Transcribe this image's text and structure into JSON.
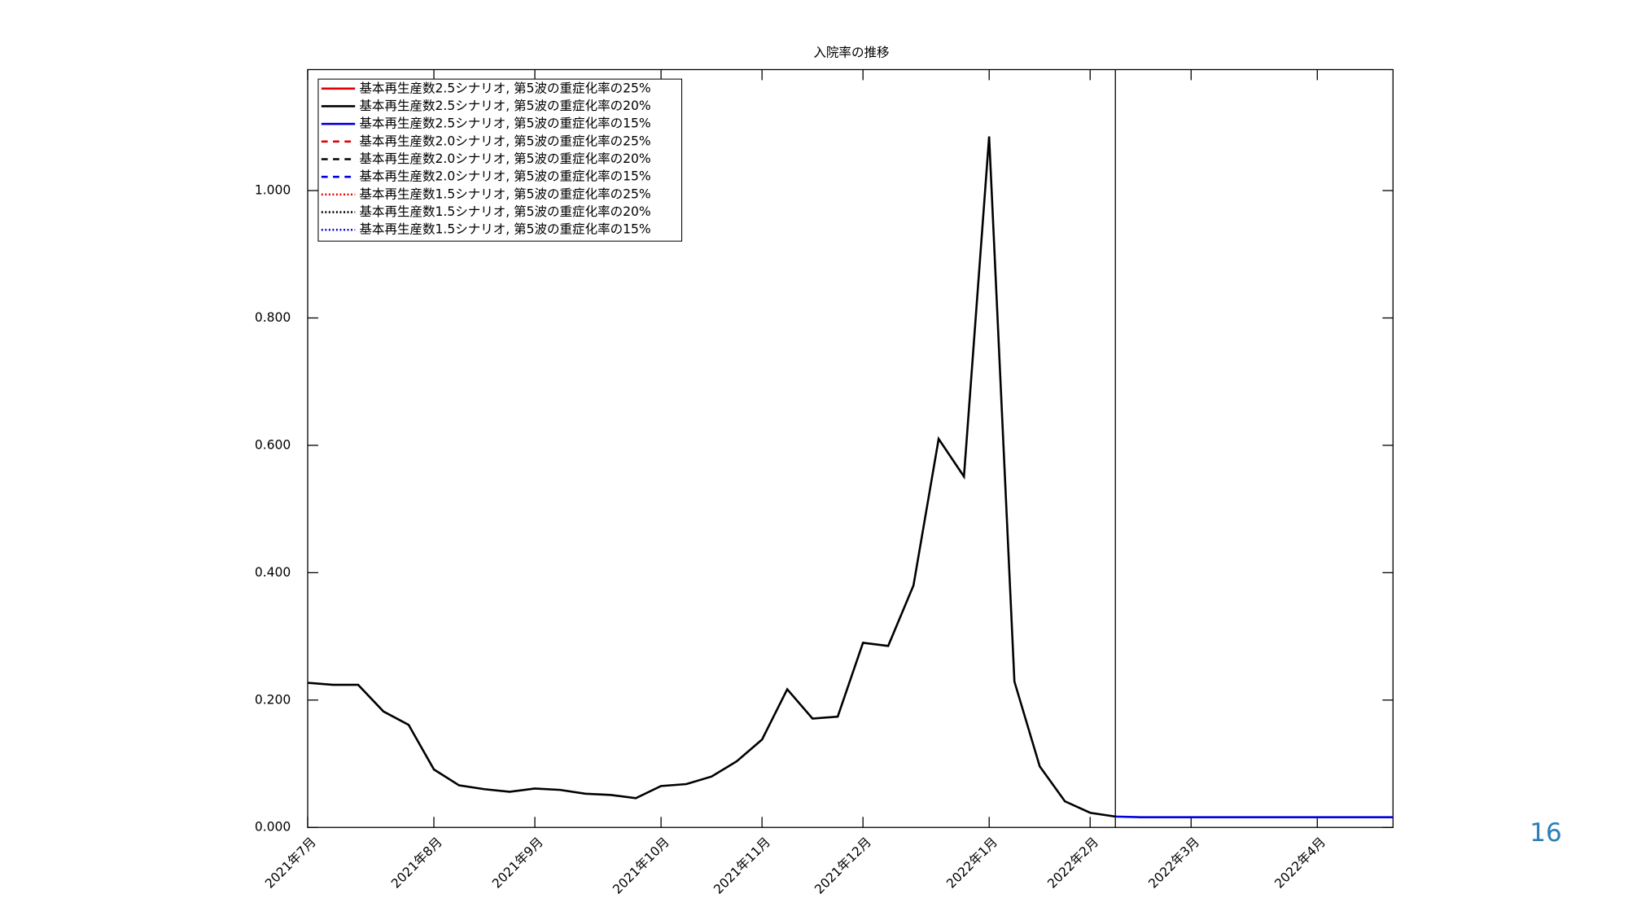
{
  "chart_data": {
    "type": "line",
    "title": "入院率の推移",
    "categories": [
      "2021年7月",
      null,
      null,
      null,
      null,
      "2021年8月",
      null,
      null,
      null,
      "2021年9月",
      null,
      null,
      null,
      null,
      "2021年10月",
      null,
      null,
      null,
      "2021年11月",
      null,
      null,
      null,
      "2021年12月",
      null,
      null,
      null,
      null,
      "2022年1月",
      null,
      null,
      null,
      "2022年2月",
      null,
      null,
      null,
      "2022年3月",
      null,
      null,
      null,
      null,
      "2022年4月",
      null,
      null,
      null
    ],
    "series": [
      {
        "name": "基本再生産数2.5シナリオ, 第5波の重症化率の25%",
        "color": "#e00000",
        "linestyle": "solid",
        "values": [
          null,
          null,
          null,
          null,
          null,
          null,
          null,
          null,
          null,
          null,
          null,
          null,
          null,
          null,
          null,
          null,
          null,
          null,
          null,
          null,
          null,
          null,
          null,
          null,
          null,
          null,
          null,
          null,
          null,
          null,
          null,
          null,
          null,
          null,
          null,
          null,
          null,
          null,
          null,
          null,
          null,
          null,
          null,
          null
        ]
      },
      {
        "name": "基本再生産数2.5シナリオ, 第5波の重症化率の20%",
        "color": "#000000",
        "linestyle": "solid",
        "values": [
          0.227,
          0.224,
          0.224,
          0.182,
          0.161,
          0.091,
          0.066,
          0.06,
          0.056,
          0.061,
          0.059,
          0.053,
          0.051,
          0.046,
          0.065,
          0.068,
          0.08,
          0.104,
          0.138,
          0.217,
          0.171,
          0.174,
          0.29,
          0.285,
          0.38,
          0.61,
          0.551,
          1.085,
          0.229,
          0.096,
          0.041,
          0.023,
          0.017,
          null,
          null,
          null,
          null,
          null,
          null,
          null,
          null,
          null,
          null,
          null
        ]
      },
      {
        "name": "基本再生産数2.5シナリオ, 第5波の重症化率の15%",
        "color": "#0000e0",
        "linestyle": "solid",
        "values": [
          null,
          null,
          null,
          null,
          null,
          null,
          null,
          null,
          null,
          null,
          null,
          null,
          null,
          null,
          null,
          null,
          null,
          null,
          null,
          null,
          null,
          null,
          null,
          null,
          null,
          null,
          null,
          null,
          null,
          null,
          null,
          null,
          0.017,
          0.016,
          0.016,
          0.016,
          0.016,
          0.016,
          0.016,
          0.016,
          0.016,
          0.016,
          0.016,
          0.016
        ]
      },
      {
        "name": "基本再生産数2.0シナリオ, 第5波の重症化率の25%",
        "color": "#e00000",
        "linestyle": "dashed",
        "values": [
          null,
          null,
          null,
          null,
          null,
          null,
          null,
          null,
          null,
          null,
          null,
          null,
          null,
          null,
          null,
          null,
          null,
          null,
          null,
          null,
          null,
          null,
          null,
          null,
          null,
          null,
          null,
          null,
          null,
          null,
          null,
          null,
          null,
          null,
          null,
          null,
          null,
          null,
          null,
          null,
          null,
          null,
          null,
          null
        ]
      },
      {
        "name": "基本再生産数2.0シナリオ, 第5波の重症化率の20%",
        "color": "#000000",
        "linestyle": "dashed",
        "values": [
          null,
          null,
          null,
          null,
          null,
          null,
          null,
          null,
          null,
          null,
          null,
          null,
          null,
          null,
          null,
          null,
          null,
          null,
          null,
          null,
          null,
          null,
          null,
          null,
          null,
          null,
          null,
          null,
          null,
          null,
          null,
          null,
          null,
          null,
          null,
          null,
          null,
          null,
          null,
          null,
          null,
          null,
          null,
          null
        ]
      },
      {
        "name": "基本再生産数2.0シナリオ, 第5波の重症化率の15%",
        "color": "#0000e0",
        "linestyle": "dashed",
        "values": [
          null,
          null,
          null,
          null,
          null,
          null,
          null,
          null,
          null,
          null,
          null,
          null,
          null,
          null,
          null,
          null,
          null,
          null,
          null,
          null,
          null,
          null,
          null,
          null,
          null,
          null,
          null,
          null,
          null,
          null,
          null,
          null,
          null,
          null,
          null,
          null,
          null,
          null,
          null,
          null,
          null,
          null,
          null,
          null
        ]
      },
      {
        "name": "基本再生産数1.5シナリオ, 第5波の重症化率の25%",
        "color": "#e00000",
        "linestyle": "dotted",
        "values": [
          null,
          null,
          null,
          null,
          null,
          null,
          null,
          null,
          null,
          null,
          null,
          null,
          null,
          null,
          null,
          null,
          null,
          null,
          null,
          null,
          null,
          null,
          null,
          null,
          null,
          null,
          null,
          null,
          null,
          null,
          null,
          null,
          null,
          null,
          null,
          null,
          null,
          null,
          null,
          null,
          null,
          null,
          null,
          null
        ]
      },
      {
        "name": "基本再生産数1.5シナリオ, 第5波の重症化率の20%",
        "color": "#000000",
        "linestyle": "dotted",
        "values": [
          null,
          null,
          null,
          null,
          null,
          null,
          null,
          null,
          null,
          null,
          null,
          null,
          null,
          null,
          null,
          null,
          null,
          null,
          null,
          null,
          null,
          null,
          null,
          null,
          null,
          null,
          null,
          null,
          null,
          null,
          null,
          null,
          null,
          null,
          null,
          null,
          null,
          null,
          null,
          null,
          null,
          null,
          null,
          null
        ]
      },
      {
        "name": "基本再生産数1.5シナリオ, 第5波の重症化率の15%",
        "color": "#0000e0",
        "linestyle": "dotted",
        "values": [
          null,
          null,
          null,
          null,
          null,
          null,
          null,
          null,
          null,
          null,
          null,
          null,
          null,
          null,
          null,
          null,
          null,
          null,
          null,
          null,
          null,
          null,
          null,
          null,
          null,
          null,
          null,
          null,
          null,
          null,
          null,
          null,
          null,
          null,
          null,
          null,
          null,
          null,
          null,
          null,
          null,
          null,
          null,
          null
        ]
      }
    ],
    "ylim": [
      0,
      1.19
    ],
    "yticks": [
      {
        "value": 0,
        "label": "0.000"
      },
      {
        "value": 0.2,
        "label": "0.200"
      },
      {
        "value": 0.4,
        "label": "0.400"
      },
      {
        "value": 0.6,
        "label": "0.600"
      },
      {
        "value": 0.8,
        "label": "0.800"
      },
      {
        "value": 1.0,
        "label": "1.000"
      }
    ],
    "vertical_line_category": 32,
    "legend": "upper left"
  },
  "page_number": "16"
}
